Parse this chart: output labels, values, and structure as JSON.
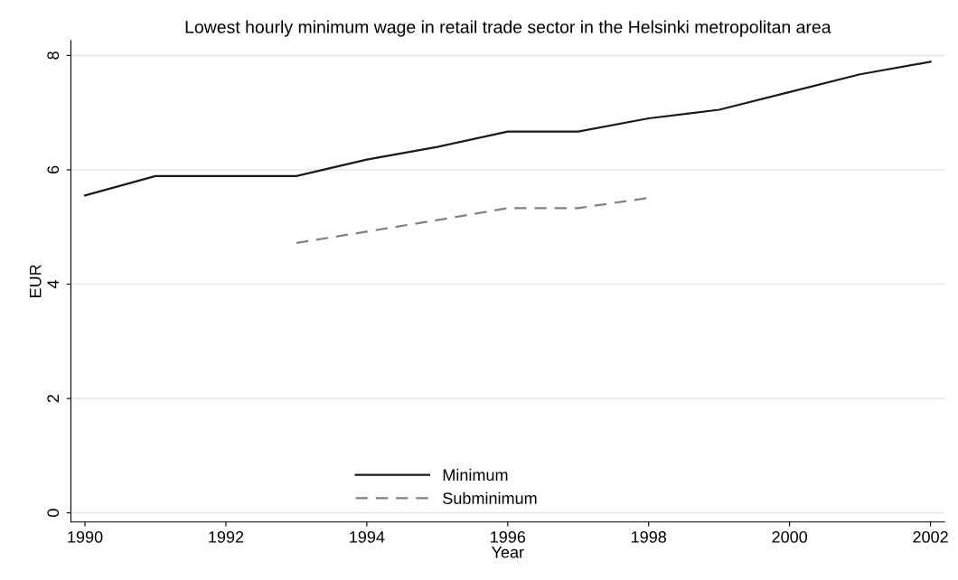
{
  "chart_data": {
    "type": "line",
    "title": "Lowest hourly minimum wage in retail trade sector in the Helsinki metropolitan area",
    "xlabel": "Year",
    "ylabel": "EUR",
    "x": [
      1990,
      1991,
      1992,
      1993,
      1994,
      1995,
      1996,
      1997,
      1998,
      1999,
      2000,
      2001,
      2002
    ],
    "series": [
      {
        "name": "Minimum",
        "color": "#1a1a1a",
        "line_style": "solid",
        "values": [
          5.55,
          5.89,
          5.89,
          5.89,
          6.18,
          6.4,
          6.67,
          6.67,
          6.9,
          7.05,
          7.36,
          7.67,
          7.89
        ]
      },
      {
        "name": "Subminimum",
        "color": "#808080",
        "line_style": "dashed",
        "values": [
          null,
          null,
          null,
          4.72,
          4.92,
          5.12,
          5.33,
          5.33,
          5.51,
          null,
          null,
          null,
          null
        ]
      }
    ],
    "xlim": [
      1989.8,
      2002.2
    ],
    "ylim": [
      -0.16,
      8.26
    ],
    "xticks": [
      1990,
      1992,
      1994,
      1996,
      1998,
      2000,
      2002
    ],
    "yticks": [
      0,
      2,
      4,
      6,
      8
    ],
    "grid": "y",
    "legend": "bottom",
    "marker": "none"
  }
}
